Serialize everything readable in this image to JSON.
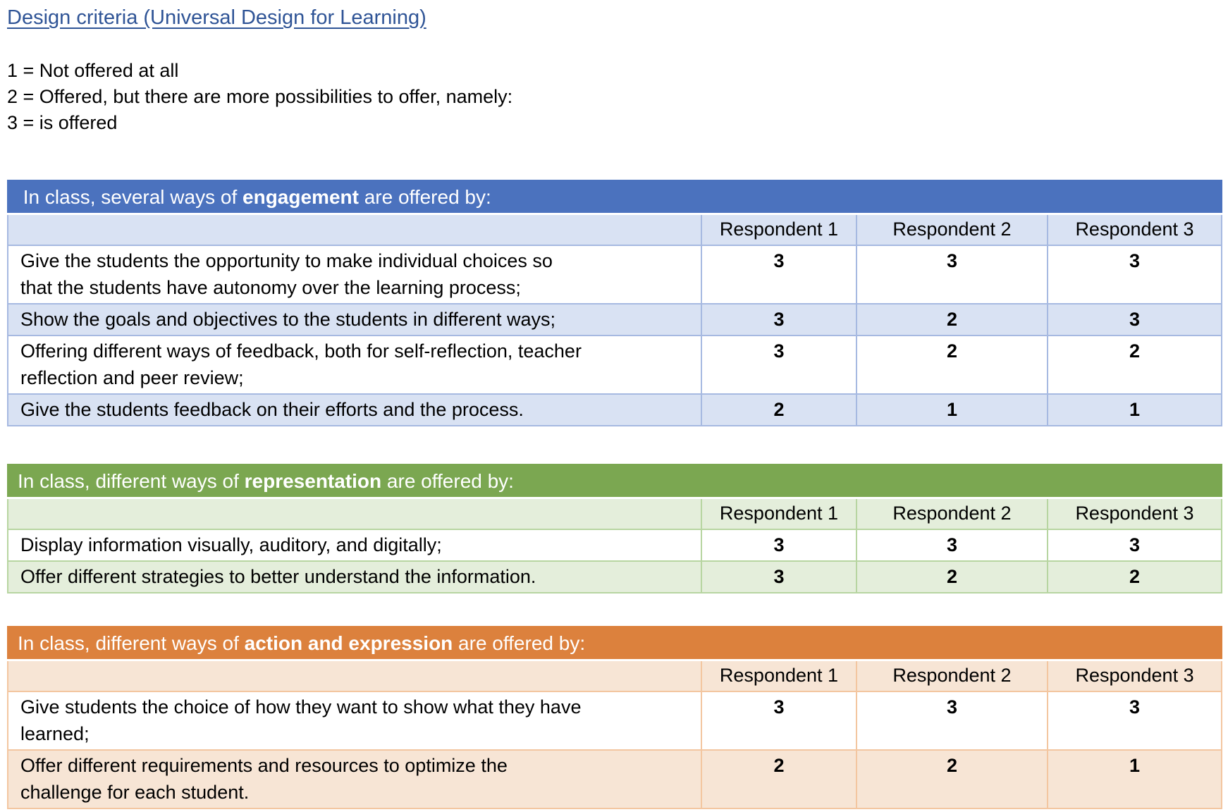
{
  "page": {
    "title_link": "Design criteria (Universal Design for Learning)"
  },
  "colors": {
    "link": "#2F5496"
  },
  "legend": {
    "lines": [
      "1 = Not offered at all",
      "2 = Offered, but there are more possibilities to offer, namely:",
      "3 = is offered"
    ]
  },
  "columns": [
    "Respondent 1",
    "Respondent 2",
    "Respondent 3"
  ],
  "tables": [
    {
      "name": "engagement",
      "colors": {
        "band": "#4B72BE",
        "tint": "#D9E2F3",
        "border": "#A6B9E1"
      },
      "title": {
        "pre": " In class, several ways of ",
        "bold": "engagement",
        "post": " are offered by:"
      },
      "rows": [
        {
          "text": "Give the students the opportunity to make individual choices so\nthat the students have autonomy over the learning process;",
          "values": [
            "3",
            "3",
            "3"
          ]
        },
        {
          "text": "Show the goals and objectives to the students in different ways;",
          "values": [
            "3",
            "2",
            "3"
          ]
        },
        {
          "text": "Offering different ways of feedback, both for self-reflection, teacher\nreflection and peer review;",
          "values": [
            "3",
            "2",
            "2"
          ]
        },
        {
          "text": "Give the students feedback on their efforts and the process.",
          "values": [
            "2",
            "1",
            "1"
          ]
        }
      ]
    },
    {
      "name": "representation",
      "colors": {
        "band": "#7BA751",
        "tint": "#E4EEDB",
        "border": "#B7D5A1"
      },
      "title": {
        "pre": "In class, different ways of ",
        "bold": "representation",
        "post": " are offered by:"
      },
      "rows": [
        {
          "text": "Display information visually, auditory, and digitally;",
          "values": [
            "3",
            "3",
            "3"
          ]
        },
        {
          "text": "Offer different strategies to better understand the information.",
          "values": [
            "3",
            "2",
            "2"
          ]
        }
      ]
    },
    {
      "name": "action-and-expression",
      "colors": {
        "band": "#DC813D",
        "tint": "#F7E5D5",
        "border": "#F3C6A0"
      },
      "title": {
        "pre": "In class, different ways of ",
        "bold": "action and expression",
        "post": " are offered by:"
      },
      "rows": [
        {
          "text": "Give students the choice of how they want to show what they have\nlearned;",
          "values": [
            "3",
            "3",
            "3"
          ]
        },
        {
          "text": "Offer different requirements and resources to optimize the\nchallenge for each student.",
          "values": [
            "2",
            "2",
            "1"
          ]
        }
      ]
    }
  ]
}
